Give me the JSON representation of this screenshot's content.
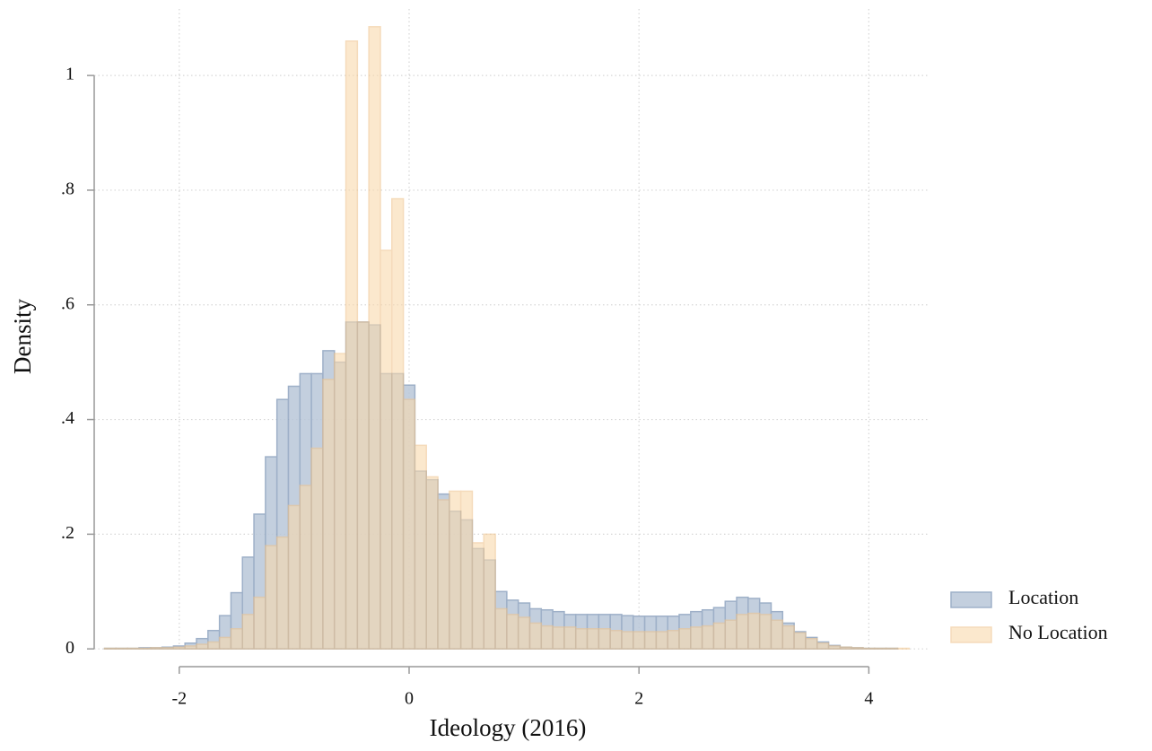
{
  "chart_data": {
    "type": "histogram",
    "x_label": "Ideology (2016)",
    "y_label": "Density",
    "bins": [
      -2.65,
      -2.55,
      -2.45,
      -2.35,
      -2.25,
      -2.15,
      -2.05,
      -1.95,
      -1.85,
      -1.75,
      -1.65,
      -1.55,
      -1.45,
      -1.35,
      -1.25,
      -1.15,
      -1.05,
      -0.95,
      -0.85,
      -0.75,
      -0.65,
      -0.55,
      -0.45,
      -0.35,
      -0.25,
      -0.15,
      -0.05,
      0.05,
      0.15,
      0.25,
      0.35,
      0.45,
      0.55,
      0.65,
      0.75,
      0.85,
      0.95,
      1.05,
      1.15,
      1.25,
      1.35,
      1.45,
      1.55,
      1.65,
      1.75,
      1.85,
      1.95,
      2.05,
      2.15,
      2.25,
      2.35,
      2.45,
      2.55,
      2.65,
      2.75,
      2.85,
      2.95,
      3.05,
      3.15,
      3.25,
      3.35,
      3.45,
      3.55,
      3.65,
      3.75,
      3.85,
      3.95,
      4.05,
      4.15,
      4.25,
      4.35
    ],
    "series": [
      {
        "name": "Location",
        "color": "#b9c7d9",
        "edge_color": "#8ea3bf",
        "values": [
          0.001,
          0.001,
          0.001,
          0.002,
          0.002,
          0.003,
          0.005,
          0.01,
          0.018,
          0.032,
          0.058,
          0.098,
          0.16,
          0.235,
          0.335,
          0.435,
          0.458,
          0.48,
          0.48,
          0.52,
          0.5,
          0.57,
          0.57,
          0.565,
          0.48,
          0.48,
          0.46,
          0.31,
          0.295,
          0.27,
          0.24,
          0.225,
          0.175,
          0.155,
          0.1,
          0.085,
          0.08,
          0.07,
          0.068,
          0.065,
          0.06,
          0.06,
          0.06,
          0.06,
          0.06,
          0.058,
          0.057,
          0.057,
          0.057,
          0.057,
          0.06,
          0.065,
          0.068,
          0.072,
          0.083,
          0.09,
          0.088,
          0.08,
          0.065,
          0.045,
          0.03,
          0.02,
          0.012,
          0.006,
          0.003,
          0.002,
          0.001,
          0.001,
          0.001,
          0
        ]
      },
      {
        "name": "No Location",
        "color": "#f9d9ad",
        "edge_color": "#efc48e",
        "values": [
          0.001,
          0.001,
          0.001,
          0.001,
          0.002,
          0.002,
          0.003,
          0.005,
          0.008,
          0.012,
          0.02,
          0.035,
          0.06,
          0.09,
          0.18,
          0.195,
          0.25,
          0.285,
          0.35,
          0.47,
          0.515,
          1.06,
          0.57,
          1.085,
          0.695,
          0.785,
          0.435,
          0.355,
          0.3,
          0.26,
          0.275,
          0.275,
          0.185,
          0.2,
          0.07,
          0.06,
          0.055,
          0.045,
          0.04,
          0.038,
          0.038,
          0.035,
          0.035,
          0.035,
          0.032,
          0.03,
          0.03,
          0.03,
          0.03,
          0.032,
          0.035,
          0.038,
          0.04,
          0.045,
          0.05,
          0.06,
          0.062,
          0.06,
          0.05,
          0.04,
          0.028,
          0.018,
          0.01,
          0.005,
          0.003,
          0.002,
          0.001,
          0.001,
          0.001,
          0.001
        ]
      }
    ],
    "xlim": [
      -2.74,
      4.52
    ],
    "ylim": [
      -0.031,
      1.116
    ],
    "xticks": [
      -2,
      0,
      2,
      4
    ],
    "yticks": [
      0,
      {
        "value": 0.2,
        "label": ".2"
      },
      {
        "value": 0.4,
        "label": ".4"
      },
      {
        "value": 0.6,
        "label": ".6"
      },
      {
        "value": 0.8,
        "label": ".8"
      },
      1
    ],
    "grid": true,
    "legend": "right"
  }
}
